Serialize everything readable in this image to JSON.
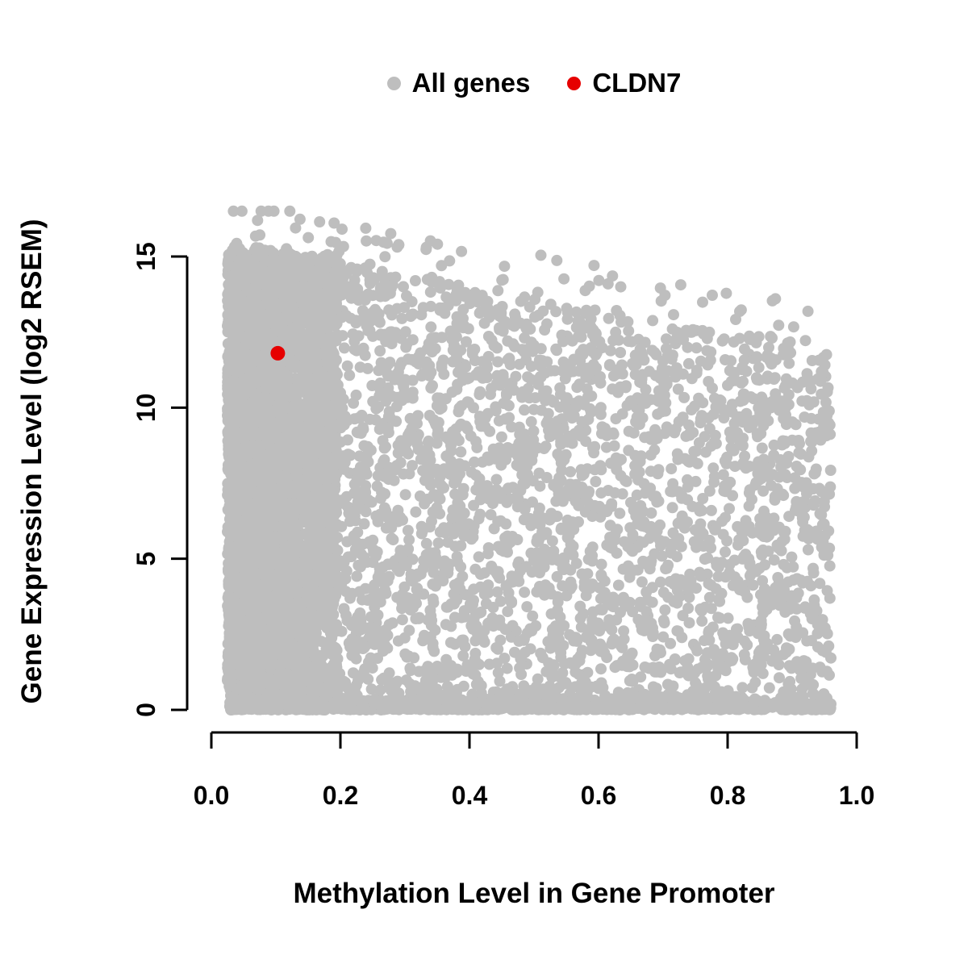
{
  "chart_data": {
    "type": "scatter",
    "title": "",
    "xlabel": "Methylation Level in Gene Promoter",
    "ylabel": "Gene Expression Level (log2 RSEM)",
    "xlim": [
      0.0,
      1.0
    ],
    "ylim": [
      0,
      16.6
    ],
    "x_ticks": [
      0.0,
      0.2,
      0.4,
      0.6,
      0.8,
      1.0
    ],
    "x_tick_labels": [
      "0.0",
      "0.2",
      "0.4",
      "0.6",
      "0.8",
      "1.0"
    ],
    "y_ticks": [
      0,
      5,
      10,
      15
    ],
    "y_tick_labels": [
      "0",
      "5",
      "10",
      "15"
    ],
    "grid": false,
    "legend": {
      "position": "top-center",
      "items": [
        {
          "label": "All genes",
          "color": "#bebebe"
        },
        {
          "label": "CLDN7",
          "color": "#e60000"
        }
      ]
    },
    "series": [
      {
        "name": "All genes",
        "color": "#bebebe",
        "marker": "filled-circle",
        "marker_radius_px": 7,
        "summary": "Dense cloud of thousands of genes: heavy block at promoter methylation < 0.2 spanning expression 0-15 (a few outliers to ~16.5); scatter thins rightward with upper envelope falling from ~15.5 at methylation 0 to ~12 at methylation 0.95; dense band of near-zero-expression genes along y=0 across all methylation levels.",
        "generator": {
          "seed": 42,
          "n_low_meth_block": 3000,
          "block_x_min": 0.025,
          "block_x_spread": 0.17,
          "block_y_max": 15.1,
          "n_wedge": 3600,
          "wedge_x_min": 0.03,
          "wedge_x_spread": 0.93,
          "envelope_intercept": 15.6,
          "envelope_slope": -4.0,
          "n_zero_floor": 1500,
          "floor_y_sigma": 0.18,
          "n_high_outliers": 80,
          "outlier_band": 1.6
        }
      },
      {
        "name": "CLDN7",
        "color": "#e60000",
        "marker": "filled-circle",
        "marker_radius_px": 9,
        "points": [
          [
            0.103,
            11.8
          ]
        ]
      }
    ]
  }
}
